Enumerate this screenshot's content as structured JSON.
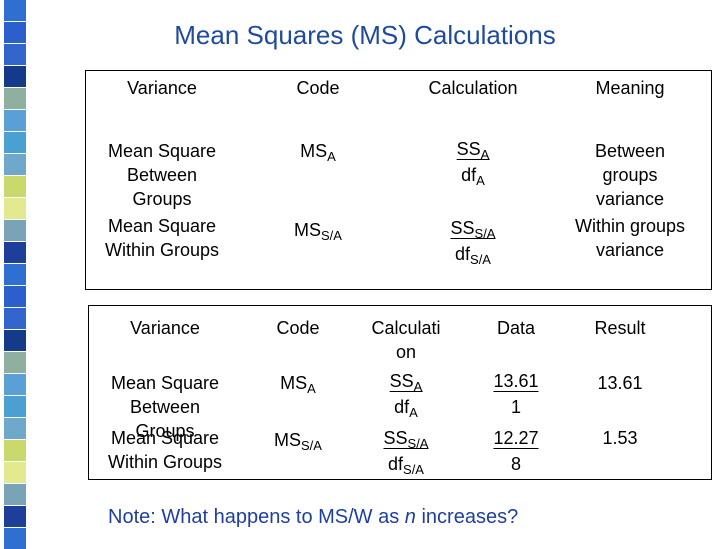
{
  "title": "Mean Squares (MS) Calculations",
  "table1": {
    "headers": [
      "Variance",
      "Code",
      "Calculation",
      "Meaning"
    ],
    "rows": [
      {
        "variance": [
          "Mean Square",
          "Between",
          "Groups"
        ],
        "code": {
          "main": "MS",
          "sub": "A"
        },
        "calculation": {
          "numerator": {
            "main": "SS",
            "sub": "A"
          },
          "denominator": {
            "main": "df",
            "sub": "A"
          }
        },
        "meaning": [
          "Between",
          "groups",
          "variance"
        ]
      },
      {
        "variance": [
          "Mean Square",
          "Within Groups"
        ],
        "code": {
          "main": "MS",
          "sub": "S/A"
        },
        "calculation": {
          "numerator": {
            "main": "SS",
            "sub": "S/A"
          },
          "denominator": {
            "main": "df",
            "sub": "S/A"
          }
        },
        "meaning": [
          "Within groups",
          "variance"
        ]
      }
    ]
  },
  "table2": {
    "headers": [
      [
        "Variance"
      ],
      [
        "Code"
      ],
      [
        "Calculati",
        "on"
      ],
      [
        "Data"
      ],
      [
        "Result"
      ]
    ],
    "rows": [
      {
        "variance": [
          "Mean Square",
          "Between",
          "Groups"
        ],
        "code": {
          "main": "MS",
          "sub": "A"
        },
        "calculation": {
          "numerator": {
            "main": "SS",
            "sub": "A"
          },
          "denominator": {
            "main": "df",
            "sub": "A"
          }
        },
        "data": {
          "numerator": "13.61",
          "denominator": "1"
        },
        "result": "13.61"
      },
      {
        "variance": [
          "Mean Square",
          "Within Groups"
        ],
        "code": {
          "main": "MS",
          "sub": "S/A"
        },
        "calculation": {
          "numerator": {
            "main": "SS",
            "sub": "S/A"
          },
          "denominator": {
            "main": "df",
            "sub": "S/A"
          }
        },
        "data": {
          "numerator": "12.27",
          "denominator": "8"
        },
        "result": "1.53"
      }
    ]
  },
  "note": {
    "start": "Note:  What happens to MS/W as ",
    "emphasis": "n",
    "end": " increases?"
  }
}
